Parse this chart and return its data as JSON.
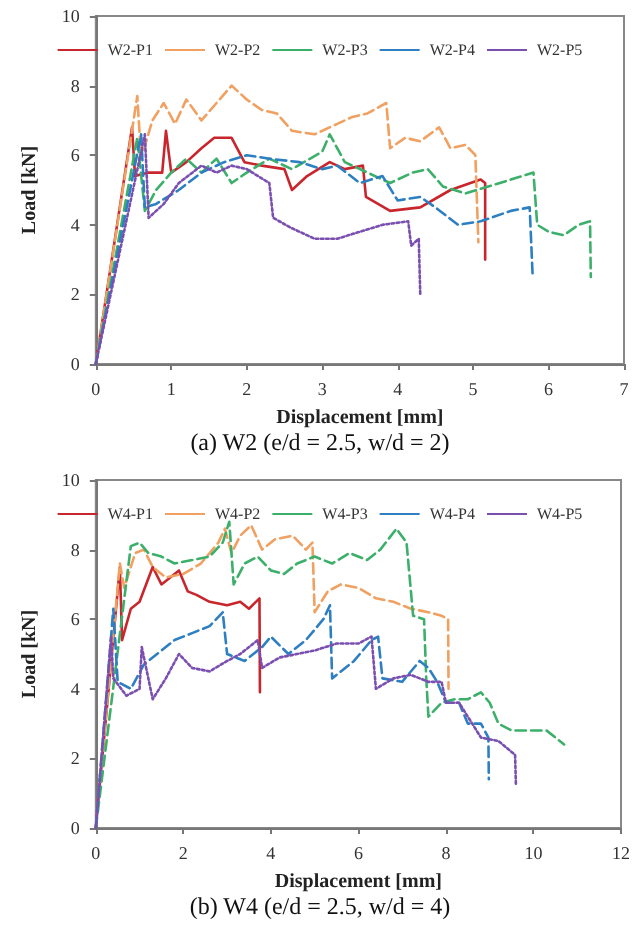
{
  "chart_data": [
    {
      "type": "line",
      "title": "(a) W2 (e/d = 2.5, w/d = 2)",
      "xlabel": "Displacement [mm]",
      "ylabel": "Load [kN]",
      "xlim": [
        0,
        7
      ],
      "xticks": [
        0,
        1,
        2,
        3,
        4,
        5,
        6,
        7
      ],
      "ylim": [
        0,
        10
      ],
      "yticks": [
        0,
        2,
        4,
        6,
        8,
        10
      ],
      "grid": false,
      "legend": "top",
      "marker": "none",
      "series": [
        {
          "name": "W2-P1",
          "color": "#c8262c",
          "line_style": "solid",
          "x": [
            0,
            0.48,
            0.52,
            0.7,
            0.88,
            0.93,
            1.0,
            1.2,
            1.4,
            1.57,
            1.8,
            1.97,
            2.2,
            2.5,
            2.6,
            2.8,
            3.1,
            3.3,
            3.54,
            3.58,
            3.9,
            4.3,
            4.7,
            5.1,
            5.16,
            5.16
          ],
          "values": [
            0,
            6.8,
            5.4,
            5.5,
            5.5,
            6.7,
            5.5,
            5.8,
            6.2,
            6.5,
            6.5,
            5.8,
            5.7,
            5.6,
            5.0,
            5.4,
            5.8,
            5.6,
            5.7,
            4.8,
            4.4,
            4.5,
            5.0,
            5.3,
            5.2,
            3.0
          ]
        },
        {
          "name": "W2-P2",
          "color": "#f0a060",
          "line_style": "dashed",
          "x": [
            0,
            0.55,
            0.6,
            0.75,
            0.9,
            1.05,
            1.2,
            1.4,
            1.6,
            1.8,
            2.0,
            2.2,
            2.4,
            2.6,
            2.9,
            3.2,
            3.4,
            3.6,
            3.85,
            3.9,
            4.1,
            4.3,
            4.55,
            4.7,
            4.9,
            5.03,
            5.07
          ],
          "values": [
            0,
            7.7,
            5.9,
            7.0,
            7.5,
            6.9,
            7.6,
            7.0,
            7.5,
            8.0,
            7.6,
            7.3,
            7.2,
            6.7,
            6.6,
            6.9,
            7.1,
            7.2,
            7.5,
            6.2,
            6.5,
            6.4,
            6.8,
            6.2,
            6.3,
            6.0,
            3.5
          ]
        },
        {
          "name": "W2-P3",
          "color": "#3cb06a",
          "line_style": "dashed",
          "x": [
            0,
            0.55,
            0.65,
            0.8,
            1.0,
            1.2,
            1.4,
            1.6,
            1.8,
            2.0,
            2.3,
            2.6,
            3.0,
            3.1,
            3.3,
            3.6,
            3.9,
            4.2,
            4.4,
            4.6,
            4.9,
            5.2,
            5.5,
            5.8,
            5.85,
            6.0,
            6.2,
            6.4,
            6.55,
            6.56
          ],
          "values": [
            0,
            6.5,
            4.4,
            5.0,
            5.5,
            5.9,
            5.5,
            5.9,
            5.2,
            5.5,
            5.9,
            5.6,
            6.1,
            6.6,
            5.8,
            5.5,
            5.2,
            5.5,
            5.6,
            5.1,
            4.9,
            5.1,
            5.3,
            5.5,
            4.0,
            3.8,
            3.7,
            4.0,
            4.1,
            2.5
          ]
        },
        {
          "name": "W2-P4",
          "color": "#2e7fc1",
          "line_style": "dashed",
          "x": [
            0,
            0.6,
            0.65,
            0.8,
            1.1,
            1.4,
            1.7,
            2.0,
            2.3,
            2.7,
            3.0,
            3.2,
            3.5,
            3.8,
            4.0,
            4.3,
            4.5,
            4.8,
            5.1,
            5.5,
            5.75,
            5.79
          ],
          "values": [
            0,
            6.6,
            4.5,
            4.6,
            5.0,
            5.5,
            5.8,
            6.0,
            5.9,
            5.8,
            5.6,
            5.7,
            5.2,
            5.4,
            4.7,
            4.8,
            4.5,
            4.0,
            4.1,
            4.4,
            4.5,
            2.5
          ]
        },
        {
          "name": "W2-P5",
          "color": "#7a4fb0",
          "line_style": "dotted",
          "x": [
            0,
            0.65,
            0.7,
            0.9,
            1.1,
            1.4,
            1.6,
            1.8,
            2.0,
            2.3,
            2.35,
            2.6,
            2.9,
            3.2,
            3.5,
            3.8,
            4.14,
            4.18,
            4.28,
            4.3
          ],
          "values": [
            0,
            6.6,
            4.2,
            4.6,
            5.2,
            5.7,
            5.5,
            5.7,
            5.6,
            5.2,
            4.2,
            3.9,
            3.6,
            3.6,
            3.8,
            4.0,
            4.1,
            3.4,
            3.6,
            2.0
          ]
        }
      ]
    },
    {
      "type": "line",
      "title": "(b) W4 (e/d = 2.5, w/d = 4)",
      "xlabel": "Displacement [mm]",
      "ylabel": "Load [kN]",
      "xlim": [
        0,
        12
      ],
      "xticks": [
        0,
        2,
        4,
        6,
        8,
        10,
        12
      ],
      "ylim": [
        0,
        10
      ],
      "yticks": [
        0,
        2,
        4,
        6,
        8,
        10
      ],
      "grid": false,
      "legend": "top",
      "marker": "none",
      "series": [
        {
          "name": "W4-P1",
          "color": "#c8262c",
          "line_style": "solid",
          "x": [
            0,
            0.55,
            0.6,
            0.8,
            1.0,
            1.3,
            1.5,
            1.7,
            1.9,
            2.1,
            2.3,
            2.6,
            3.0,
            3.3,
            3.5,
            3.74,
            3.75
          ],
          "values": [
            0,
            7.5,
            5.4,
            6.3,
            6.5,
            7.5,
            7.0,
            7.2,
            7.4,
            6.8,
            6.7,
            6.5,
            6.4,
            6.5,
            6.3,
            6.6,
            3.9
          ]
        },
        {
          "name": "W4-P2",
          "color": "#f0a060",
          "line_style": "dashed",
          "x": [
            0,
            0.55,
            0.65,
            0.9,
            1.1,
            1.3,
            1.6,
            2.0,
            2.4,
            2.8,
            2.95,
            3.1,
            3.3,
            3.55,
            3.8,
            4.1,
            4.5,
            4.8,
            4.95,
            5.0,
            5.3,
            5.6,
            6.0,
            6.4,
            6.8,
            7.2,
            7.6,
            7.9,
            8.05,
            8.06
          ],
          "values": [
            0,
            7.6,
            6.9,
            7.9,
            8.0,
            7.5,
            7.2,
            7.3,
            7.6,
            8.2,
            8.6,
            7.9,
            8.4,
            8.7,
            8.0,
            8.3,
            8.4,
            8.0,
            8.2,
            6.2,
            6.8,
            7.0,
            6.9,
            6.6,
            6.5,
            6.3,
            6.2,
            6.1,
            6.0,
            4.0
          ]
        },
        {
          "name": "W4-P3",
          "color": "#3cb06a",
          "line_style": "dashed",
          "x": [
            0,
            0.8,
            1.0,
            1.2,
            1.5,
            1.8,
            2.2,
            2.6,
            2.9,
            3.05,
            3.15,
            3.4,
            3.7,
            4.0,
            4.3,
            4.6,
            5.0,
            5.4,
            5.8,
            6.2,
            6.5,
            6.87,
            7.1,
            7.25,
            7.5,
            7.55,
            7.6,
            7.9,
            8.2,
            8.5,
            8.8,
            9.0,
            9.2,
            9.5,
            10.0,
            10.3,
            10.7
          ],
          "values": [
            0,
            8.1,
            8.2,
            7.9,
            7.8,
            7.6,
            7.7,
            7.8,
            8.2,
            8.8,
            7.0,
            7.6,
            7.8,
            7.4,
            7.3,
            7.6,
            7.8,
            7.6,
            7.9,
            7.7,
            8.0,
            8.6,
            8.2,
            6.1,
            6.0,
            4.3,
            3.2,
            3.6,
            3.7,
            3.7,
            3.9,
            3.6,
            3.0,
            2.8,
            2.8,
            2.8,
            2.4
          ]
        },
        {
          "name": "W4-P4",
          "color": "#2e7fc1",
          "line_style": "dashed",
          "x": [
            0,
            0.4,
            0.5,
            0.8,
            1.1,
            1.4,
            1.8,
            2.2,
            2.6,
            2.9,
            3.0,
            3.4,
            3.8,
            4.0,
            4.4,
            4.8,
            5.2,
            5.35,
            5.4,
            5.9,
            6.3,
            6.45,
            6.55,
            7.0,
            7.4,
            7.6,
            7.8,
            8.0,
            8.3,
            8.5,
            8.8,
            8.97,
            8.98
          ],
          "values": [
            0,
            6.3,
            4.2,
            4.0,
            4.7,
            5.0,
            5.4,
            5.6,
            5.8,
            6.2,
            5.0,
            4.8,
            5.2,
            5.5,
            5.0,
            5.4,
            6.0,
            6.4,
            4.3,
            4.8,
            5.4,
            5.5,
            4.3,
            4.2,
            4.8,
            4.6,
            4.2,
            3.6,
            3.6,
            3.0,
            3.0,
            2.6,
            1.4
          ]
        },
        {
          "name": "W4-P5",
          "color": "#7a4fb0",
          "line_style": "dotted",
          "x": [
            0,
            0.35,
            0.4,
            0.7,
            1.0,
            1.05,
            1.3,
            1.6,
            1.9,
            2.2,
            2.6,
            3.0,
            3.3,
            3.7,
            3.8,
            4.2,
            4.6,
            5.0,
            5.5,
            6.0,
            6.3,
            6.4,
            6.8,
            7.2,
            7.6,
            7.9,
            8.0,
            8.3,
            8.6,
            8.8,
            9.2,
            9.58,
            9.6
          ],
          "values": [
            0,
            5.5,
            4.3,
            3.8,
            4.0,
            5.2,
            3.7,
            4.3,
            5.0,
            4.6,
            4.5,
            4.8,
            5.0,
            5.4,
            4.6,
            4.9,
            5.0,
            5.1,
            5.3,
            5.3,
            5.5,
            4.0,
            4.3,
            4.4,
            4.2,
            4.2,
            3.6,
            3.6,
            3.0,
            2.6,
            2.5,
            2.1,
            1.2
          ]
        }
      ]
    }
  ]
}
